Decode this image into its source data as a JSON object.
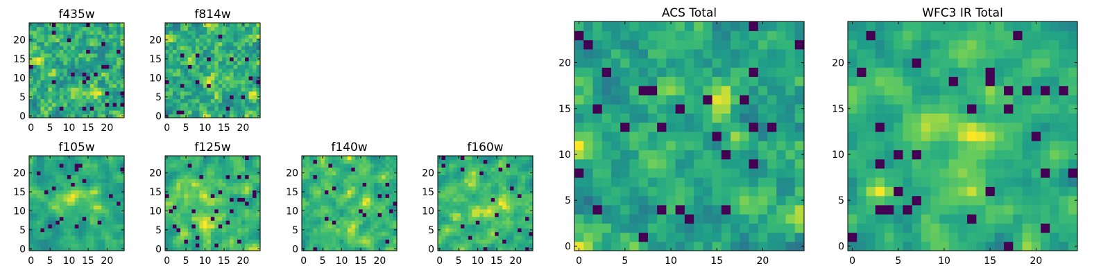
{
  "chart_data": [
    {
      "type": "heatmap",
      "title": "f435w",
      "colormap": "viridis",
      "grid_size": 25,
      "x_ticks": [
        0,
        5,
        10,
        15,
        20
      ],
      "y_ticks": [
        0,
        5,
        10,
        15,
        20
      ],
      "xlim": [
        -0.5,
        24.5
      ],
      "ylim": [
        -0.5,
        24.5
      ],
      "grid": false
    },
    {
      "type": "heatmap",
      "title": "f814w",
      "colormap": "viridis",
      "grid_size": 25,
      "x_ticks": [
        0,
        5,
        10,
        15,
        20
      ],
      "y_ticks": [
        0,
        5,
        10,
        15,
        20
      ],
      "xlim": [
        -0.5,
        24.5
      ],
      "ylim": [
        -0.5,
        24.5
      ],
      "grid": false
    },
    {
      "type": "heatmap",
      "title": "f105w",
      "colormap": "viridis",
      "grid_size": 25,
      "x_ticks": [
        0,
        5,
        10,
        15,
        20
      ],
      "y_ticks": [
        0,
        5,
        10,
        15,
        20
      ],
      "xlim": [
        -0.5,
        24.5
      ],
      "ylim": [
        -0.5,
        24.5
      ],
      "grid": false
    },
    {
      "type": "heatmap",
      "title": "f125w",
      "colormap": "viridis",
      "grid_size": 25,
      "x_ticks": [
        0,
        5,
        10,
        15,
        20
      ],
      "y_ticks": [
        0,
        5,
        10,
        15,
        20
      ],
      "xlim": [
        -0.5,
        24.5
      ],
      "ylim": [
        -0.5,
        24.5
      ],
      "grid": false
    },
    {
      "type": "heatmap",
      "title": "f140w",
      "colormap": "viridis",
      "grid_size": 25,
      "x_ticks": [
        0,
        5,
        10,
        15,
        20
      ],
      "y_ticks": [
        0,
        5,
        10,
        15,
        20
      ],
      "xlim": [
        -0.5,
        24.5
      ],
      "ylim": [
        -0.5,
        24.5
      ],
      "grid": false
    },
    {
      "type": "heatmap",
      "title": "f160w",
      "colormap": "viridis",
      "grid_size": 25,
      "x_ticks": [
        0,
        5,
        10,
        15,
        20
      ],
      "y_ticks": [
        0,
        5,
        10,
        15,
        20
      ],
      "xlim": [
        -0.5,
        24.5
      ],
      "ylim": [
        -0.5,
        24.5
      ],
      "grid": false
    },
    {
      "type": "heatmap",
      "title": "ACS Total",
      "colormap": "viridis",
      "grid_size": 25,
      "x_ticks": [
        0,
        5,
        10,
        15,
        20
      ],
      "y_ticks": [
        0,
        5,
        10,
        15,
        20
      ],
      "xlim": [
        -0.5,
        24.5
      ],
      "ylim": [
        -0.5,
        24.5
      ],
      "grid": false
    },
    {
      "type": "heatmap",
      "title": "WFC3 IR Total",
      "colormap": "viridis",
      "grid_size": 25,
      "x_ticks": [
        0,
        5,
        10,
        15,
        20
      ],
      "y_ticks": [
        0,
        5,
        10,
        15,
        20
      ],
      "xlim": [
        -0.5,
        24.5
      ],
      "ylim": [
        -0.5,
        24.5
      ],
      "grid": false
    }
  ],
  "colors": {
    "viridis_dark": "#440154",
    "viridis_mid": "#21918c",
    "viridis_green": "#5ec962",
    "viridis_yellow": "#fde725"
  }
}
